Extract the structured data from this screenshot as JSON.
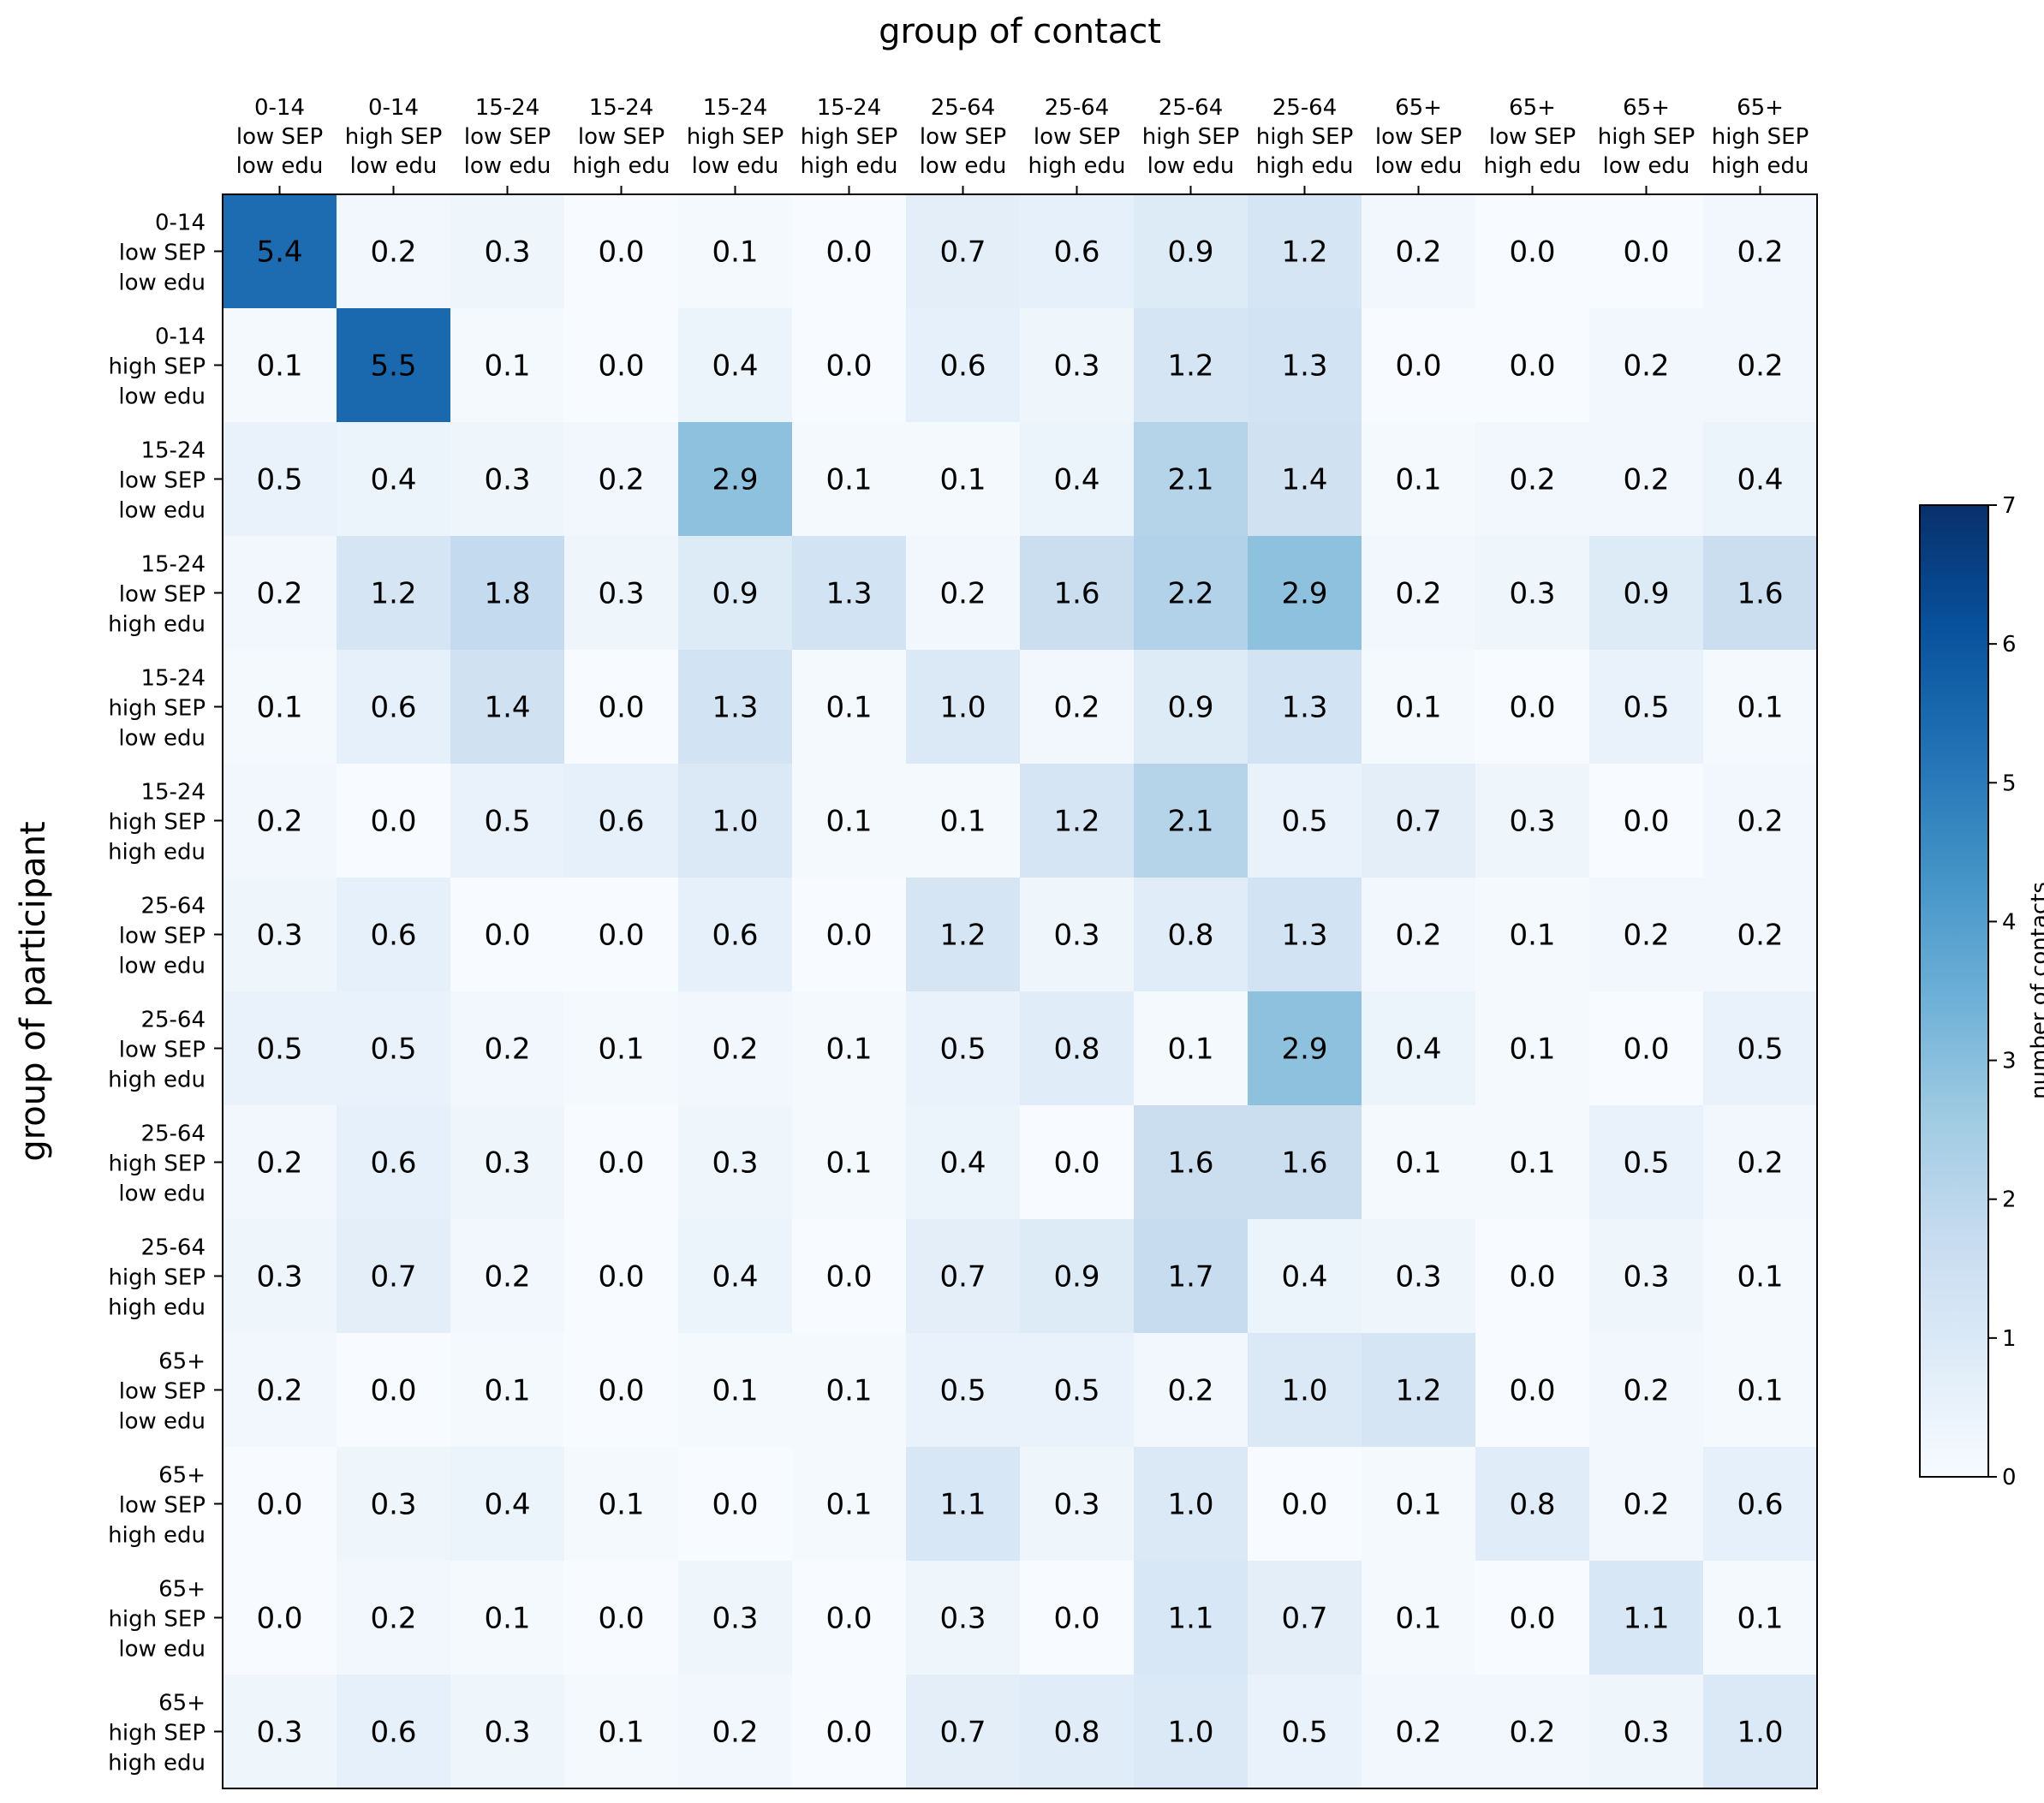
{
  "chart_data": {
    "type": "heatmap",
    "title": "",
    "xlabel": "group of contact",
    "ylabel": "group of participant",
    "x_ticks": [
      [
        "0-14",
        "low SEP",
        "low edu"
      ],
      [
        "0-14",
        "high SEP",
        "low edu"
      ],
      [
        "15-24",
        "low SEP",
        "low edu"
      ],
      [
        "15-24",
        "low SEP",
        "high edu"
      ],
      [
        "15-24",
        "high SEP",
        "low edu"
      ],
      [
        "15-24",
        "high SEP",
        "high edu"
      ],
      [
        "25-64",
        "low SEP",
        "low edu"
      ],
      [
        "25-64",
        "low SEP",
        "high edu"
      ],
      [
        "25-64",
        "high SEP",
        "low edu"
      ],
      [
        "25-64",
        "high SEP",
        "high edu"
      ],
      [
        "65+",
        "low SEP",
        "low edu"
      ],
      [
        "65+",
        "low SEP",
        "high edu"
      ],
      [
        "65+",
        "high SEP",
        "low edu"
      ],
      [
        "65+",
        "high SEP",
        "high edu"
      ]
    ],
    "y_ticks": [
      [
        "0-14",
        "low SEP",
        "low edu"
      ],
      [
        "0-14",
        "high SEP",
        "low edu"
      ],
      [
        "15-24",
        "low SEP",
        "low edu"
      ],
      [
        "15-24",
        "low SEP",
        "high edu"
      ],
      [
        "15-24",
        "high SEP",
        "low edu"
      ],
      [
        "15-24",
        "high SEP",
        "high edu"
      ],
      [
        "25-64",
        "low SEP",
        "low edu"
      ],
      [
        "25-64",
        "low SEP",
        "high edu"
      ],
      [
        "25-64",
        "high SEP",
        "low edu"
      ],
      [
        "25-64",
        "high SEP",
        "high edu"
      ],
      [
        "65+",
        "low SEP",
        "low edu"
      ],
      [
        "65+",
        "low SEP",
        "high edu"
      ],
      [
        "65+",
        "high SEP",
        "low edu"
      ],
      [
        "65+",
        "high SEP",
        "high edu"
      ]
    ],
    "values": [
      [
        5.4,
        0.2,
        0.3,
        0.0,
        0.1,
        0.0,
        0.7,
        0.6,
        0.9,
        1.2,
        0.2,
        0.0,
        0.0,
        0.2
      ],
      [
        0.1,
        5.5,
        0.1,
        0.0,
        0.4,
        0.0,
        0.6,
        0.3,
        1.2,
        1.3,
        0.0,
        0.0,
        0.2,
        0.2
      ],
      [
        0.5,
        0.4,
        0.3,
        0.2,
        2.9,
        0.1,
        0.1,
        0.4,
        2.1,
        1.4,
        0.1,
        0.2,
        0.2,
        0.4
      ],
      [
        0.2,
        1.2,
        1.8,
        0.3,
        0.9,
        1.3,
        0.2,
        1.6,
        2.2,
        2.9,
        0.2,
        0.3,
        0.9,
        1.6
      ],
      [
        0.1,
        0.6,
        1.4,
        0.0,
        1.3,
        0.1,
        1.0,
        0.2,
        0.9,
        1.3,
        0.1,
        0.0,
        0.5,
        0.1
      ],
      [
        0.2,
        0.0,
        0.5,
        0.6,
        1.0,
        0.1,
        0.1,
        1.2,
        2.1,
        0.5,
        0.7,
        0.3,
        0.0,
        0.2
      ],
      [
        0.3,
        0.6,
        0.0,
        0.0,
        0.6,
        0.0,
        1.2,
        0.3,
        0.8,
        1.3,
        0.2,
        0.1,
        0.2,
        0.2
      ],
      [
        0.5,
        0.5,
        0.2,
        0.1,
        0.2,
        0.1,
        0.5,
        0.8,
        0.1,
        2.9,
        0.4,
        0.1,
        0.0,
        0.5
      ],
      [
        0.2,
        0.6,
        0.3,
        0.0,
        0.3,
        0.1,
        0.4,
        0.0,
        1.6,
        1.6,
        0.1,
        0.1,
        0.5,
        0.2
      ],
      [
        0.3,
        0.7,
        0.2,
        0.0,
        0.4,
        0.0,
        0.7,
        0.9,
        1.7,
        0.4,
        0.3,
        0.0,
        0.3,
        0.1
      ],
      [
        0.2,
        0.0,
        0.1,
        0.0,
        0.1,
        0.1,
        0.5,
        0.5,
        0.2,
        1.0,
        1.2,
        0.0,
        0.2,
        0.1
      ],
      [
        0.0,
        0.3,
        0.4,
        0.1,
        0.0,
        0.1,
        1.1,
        0.3,
        1.0,
        0.0,
        0.1,
        0.8,
        0.2,
        0.6
      ],
      [
        0.0,
        0.2,
        0.1,
        0.0,
        0.3,
        0.0,
        0.3,
        0.0,
        1.1,
        0.7,
        0.1,
        0.0,
        1.1,
        0.1
      ],
      [
        0.3,
        0.6,
        0.3,
        0.1,
        0.2,
        0.0,
        0.7,
        0.8,
        1.0,
        0.5,
        0.2,
        0.2,
        0.3,
        1.0
      ]
    ],
    "colorbar": {
      "label": "number of contacts",
      "vmin": 0,
      "vmax": 7,
      "ticks": [
        "0",
        "1",
        "2",
        "3",
        "4",
        "5",
        "6",
        "7"
      ],
      "colormap": "Blues"
    }
  }
}
